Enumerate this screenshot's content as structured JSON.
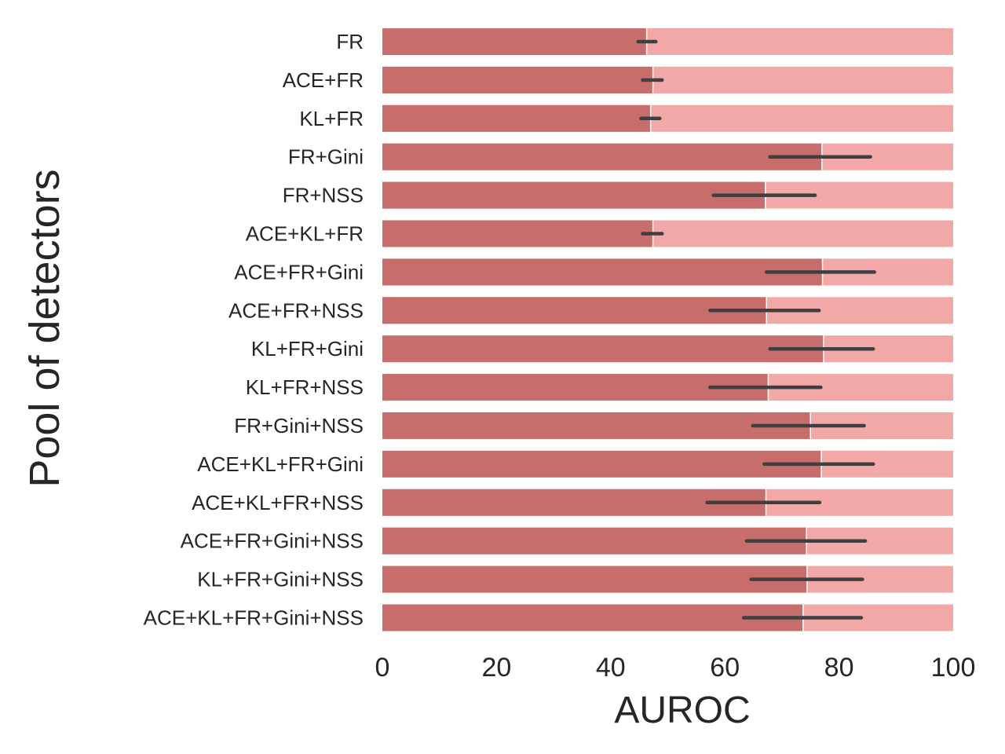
{
  "chart_data": {
    "type": "bar",
    "orientation": "horizontal",
    "xlabel": "AUROC",
    "ylabel": "Pool of detectors",
    "xlim": [
      0,
      100
    ],
    "xticks": [
      "0",
      "20",
      "40",
      "60",
      "80",
      "100"
    ],
    "grid": false,
    "categories": [
      "FR",
      "ACE+FR",
      "KL+FR",
      "FR+Gini",
      "FR+NSS",
      "ACE+KL+FR",
      "ACE+FR+Gini",
      "ACE+FR+NSS",
      "KL+FR+Gini",
      "KL+FR+NSS",
      "FR+Gini+NSS",
      "ACE+KL+FR+Gini",
      "ACE+KL+FR+NSS",
      "ACE+FR+Gini+NSS",
      "KL+FR+Gini+NSS",
      "ACE+KL+FR+Gini+NSS"
    ],
    "series": [
      {
        "values": [
          100,
          100,
          100,
          100,
          100,
          100,
          100,
          100,
          100,
          100,
          100,
          100,
          100,
          100,
          100,
          100
        ],
        "color": "#f2a8a6"
      },
      {
        "values": [
          46.3,
          47.4,
          47.0,
          77.0,
          67.1,
          47.4,
          77.1,
          67.3,
          77.3,
          67.6,
          75.0,
          76.9,
          67.2,
          74.3,
          74.4,
          73.7
        ],
        "err_low": [
          44.8,
          45.6,
          45.3,
          67.9,
          58.0,
          45.6,
          67.3,
          57.4,
          67.9,
          57.4,
          64.9,
          66.9,
          56.9,
          63.8,
          64.6,
          63.3
        ],
        "err_high": [
          47.9,
          49.0,
          48.6,
          85.5,
          75.8,
          49.0,
          86.2,
          76.5,
          86.0,
          76.8,
          84.4,
          86.0,
          76.6,
          84.6,
          84.1,
          83.9
        ],
        "color": "#c76e6c"
      }
    ]
  }
}
